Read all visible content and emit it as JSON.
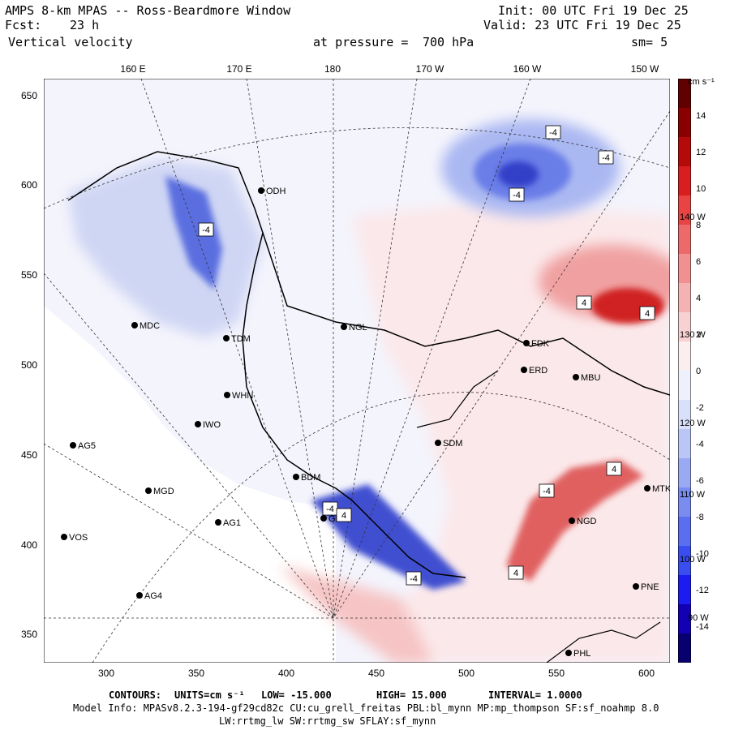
{
  "header": {
    "title": "AMPS 8-km MPAS -- Ross-Beardmore Window",
    "fcst_label": "Fcst:",
    "fcst_value": "23 h",
    "field": "Vertical velocity",
    "init": "Init: 00 UTC Fri 19 Dec 25",
    "valid": "Valid: 23 UTC Fri 19 Dec 25",
    "pressure_label": "at pressure =",
    "pressure_value": "700 hPa",
    "smooth": "sm= 5"
  },
  "axes": {
    "y_ticks": [
      "650",
      "600",
      "550",
      "500",
      "450",
      "400",
      "350"
    ],
    "x_ticks": [
      "300",
      "350",
      "400",
      "450",
      "500",
      "550",
      "600"
    ],
    "lon_top": [
      "160 E",
      "170 E",
      "180",
      "170 W",
      "160 W",
      "150 W"
    ],
    "lon_right": [
      "140 W",
      "130 W",
      "120 W",
      "110 W",
      "100 W",
      "90 W"
    ]
  },
  "colorbar": {
    "units": "cm s⁻¹",
    "labels": [
      "14",
      "12",
      "10",
      "8",
      "6",
      "4",
      "2",
      "0",
      "-2",
      "-4",
      "-6",
      "-8",
      "-10",
      "-12",
      "-14"
    ],
    "colors": [
      "#08006e",
      "#1400b4",
      "#1c1cf0",
      "#3a4ef0",
      "#5a6ef0",
      "#7a8cf0",
      "#9aaaf2",
      "#bac6f6",
      "#d8e0fa",
      "#eef0fc",
      "#fbeeee",
      "#f8d2d2",
      "#f4b2b2",
      "#f09090",
      "#ec6a6a",
      "#e84444",
      "#d81e1e",
      "#b40a0a",
      "#8a0000",
      "#600000"
    ]
  },
  "stations": [
    {
      "name": "ODH"
    },
    {
      "name": "MDC"
    },
    {
      "name": "TDM"
    },
    {
      "name": "NGL"
    },
    {
      "name": "WHN"
    },
    {
      "name": "IWO"
    },
    {
      "name": "AG5"
    },
    {
      "name": "SDM"
    },
    {
      "name": "BDM"
    },
    {
      "name": "MGD"
    },
    {
      "name": "AG1"
    },
    {
      "name": "VOS"
    },
    {
      "name": "GRM"
    },
    {
      "name": "AG4"
    },
    {
      "name": "FDK"
    },
    {
      "name": "ERD"
    },
    {
      "name": "MBU"
    },
    {
      "name": "MTK"
    },
    {
      "name": "NGD"
    },
    {
      "name": "PNE"
    },
    {
      "name": "PHL"
    }
  ],
  "contour_labels": [
    "-4",
    "-4",
    "-4",
    "-4",
    "-4",
    "4",
    "4",
    "-4",
    "4",
    "4",
    "-4",
    "4"
  ],
  "footer": {
    "contours_label": "CONTOURS:",
    "units_label": "UNITS=cm s⁻¹",
    "low": "LOW= -15.000",
    "high": "HIGH= 15.000",
    "interval": "INTERVAL= 1.0000",
    "model_info": "Model Info: MPASv8.2.3-194-gf29cd82c CU:cu_grell_freitas PBL:bl_mynn MP:mp_thompson SF:sf_noahmp 8.0",
    "model_info2": "LW:rrtmg_lw SW:rrtmg_sw SFLAY:sf_mynn"
  }
}
